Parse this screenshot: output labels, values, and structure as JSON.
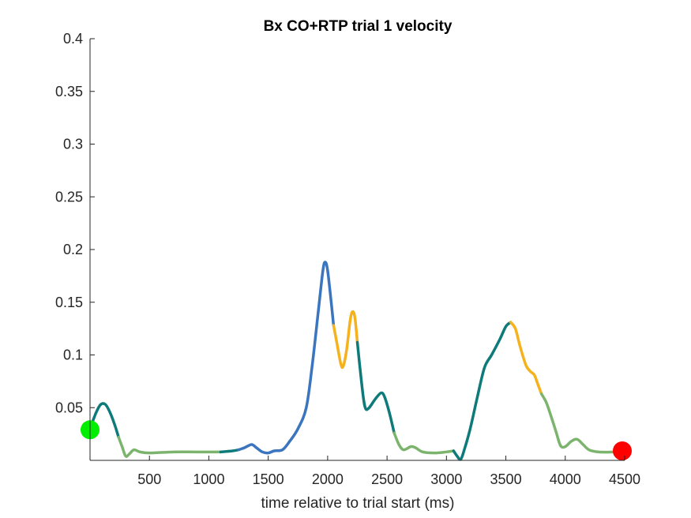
{
  "chart_data": {
    "type": "line",
    "title": "Bx  CO+RTP trial 1 velocity",
    "xlabel": "time relative to trial start (ms)",
    "ylabel": "",
    "xlim": [
      0,
      4500
    ],
    "ylim": [
      0,
      0.4
    ],
    "xticks": [
      500,
      1000,
      1500,
      2000,
      2500,
      3000,
      3500,
      4000,
      4500
    ],
    "xtick_labels": [
      "500",
      "1000",
      "1500",
      "2000",
      "2500",
      "3000",
      "3500",
      "4000",
      "4500"
    ],
    "yticks": [
      0.05,
      0.1,
      0.15,
      0.2,
      0.25,
      0.3,
      0.35,
      0.4
    ],
    "ytick_labels": [
      "0.05",
      "0.1",
      "0.15",
      "0.2",
      "0.25",
      "0.3",
      "0.35",
      "0.4"
    ],
    "grid": false,
    "colors": {
      "teal": "#0f7a7a",
      "green": "#7cb46e",
      "blue": "#3b75bf",
      "yellow": "#f5b21c",
      "start_marker": "#00ee00",
      "end_marker": "#ff0000"
    },
    "segments": [
      {
        "color": "teal",
        "points": [
          [
            0,
            0.03
          ],
          [
            50,
            0.045
          ],
          [
            90,
            0.053
          ],
          [
            130,
            0.053
          ],
          [
            170,
            0.045
          ],
          [
            210,
            0.033
          ],
          [
            240,
            0.022
          ]
        ]
      },
      {
        "color": "green",
        "points": [
          [
            240,
            0.022
          ],
          [
            270,
            0.013
          ],
          [
            300,
            0.004
          ],
          [
            330,
            0.006
          ],
          [
            370,
            0.01
          ],
          [
            420,
            0.008
          ],
          [
            500,
            0.007
          ],
          [
            700,
            0.008
          ],
          [
            900,
            0.008
          ],
          [
            1100,
            0.008
          ]
        ]
      },
      {
        "color": "teal",
        "points": [
          [
            1100,
            0.008
          ],
          [
            1200,
            0.009
          ],
          [
            1250,
            0.01
          ]
        ]
      },
      {
        "color": "blue",
        "points": [
          [
            1250,
            0.01
          ],
          [
            1300,
            0.012
          ],
          [
            1360,
            0.015
          ],
          [
            1400,
            0.012
          ],
          [
            1450,
            0.008
          ],
          [
            1500,
            0.007
          ],
          [
            1550,
            0.009
          ],
          [
            1620,
            0.01
          ],
          [
            1680,
            0.018
          ],
          [
            1750,
            0.03
          ],
          [
            1820,
            0.05
          ],
          [
            1870,
            0.09
          ],
          [
            1920,
            0.14
          ],
          [
            1960,
            0.18
          ],
          [
            1980,
            0.188
          ],
          [
            2000,
            0.18
          ],
          [
            2030,
            0.15
          ],
          [
            2050,
            0.128
          ]
        ]
      },
      {
        "color": "yellow",
        "points": [
          [
            2050,
            0.128
          ],
          [
            2080,
            0.11
          ],
          [
            2110,
            0.092
          ],
          [
            2130,
            0.089
          ],
          [
            2160,
            0.105
          ],
          [
            2190,
            0.133
          ],
          [
            2210,
            0.141
          ],
          [
            2230,
            0.135
          ],
          [
            2250,
            0.112
          ]
        ]
      },
      {
        "color": "teal",
        "points": [
          [
            2250,
            0.112
          ],
          [
            2270,
            0.09
          ],
          [
            2300,
            0.06
          ],
          [
            2320,
            0.049
          ],
          [
            2350,
            0.05
          ],
          [
            2400,
            0.058
          ],
          [
            2450,
            0.064
          ],
          [
            2480,
            0.06
          ],
          [
            2520,
            0.045
          ],
          [
            2560,
            0.026
          ]
        ]
      },
      {
        "color": "green",
        "points": [
          [
            2560,
            0.026
          ],
          [
            2600,
            0.015
          ],
          [
            2640,
            0.01
          ],
          [
            2700,
            0.013
          ],
          [
            2740,
            0.012
          ],
          [
            2800,
            0.008
          ],
          [
            2900,
            0.007
          ],
          [
            3000,
            0.008
          ],
          [
            3060,
            0.009
          ]
        ]
      },
      {
        "color": "teal",
        "points": [
          [
            3060,
            0.009
          ],
          [
            3090,
            0.004
          ],
          [
            3120,
            0.001
          ],
          [
            3150,
            0.01
          ],
          [
            3200,
            0.03
          ],
          [
            3260,
            0.06
          ],
          [
            3320,
            0.088
          ],
          [
            3380,
            0.1
          ],
          [
            3450,
            0.115
          ],
          [
            3500,
            0.127
          ],
          [
            3540,
            0.131
          ]
        ]
      },
      {
        "color": "yellow",
        "points": [
          [
            3540,
            0.131
          ],
          [
            3580,
            0.125
          ],
          [
            3620,
            0.108
          ],
          [
            3670,
            0.09
          ],
          [
            3710,
            0.084
          ],
          [
            3740,
            0.081
          ],
          [
            3770,
            0.072
          ],
          [
            3800,
            0.063
          ]
        ]
      },
      {
        "color": "green",
        "points": [
          [
            3800,
            0.063
          ],
          [
            3840,
            0.055
          ],
          [
            3880,
            0.042
          ],
          [
            3920,
            0.028
          ],
          [
            3960,
            0.014
          ],
          [
            4000,
            0.013
          ],
          [
            4050,
            0.018
          ],
          [
            4100,
            0.02
          ],
          [
            4150,
            0.015
          ],
          [
            4200,
            0.01
          ],
          [
            4280,
            0.008
          ],
          [
            4400,
            0.008
          ],
          [
            4480,
            0.009
          ]
        ]
      }
    ],
    "markers": [
      {
        "name": "start",
        "x": 0,
        "y": 0.029,
        "color": "start_marker"
      },
      {
        "name": "end",
        "x": 4480,
        "y": 0.009,
        "color": "end_marker"
      }
    ]
  }
}
